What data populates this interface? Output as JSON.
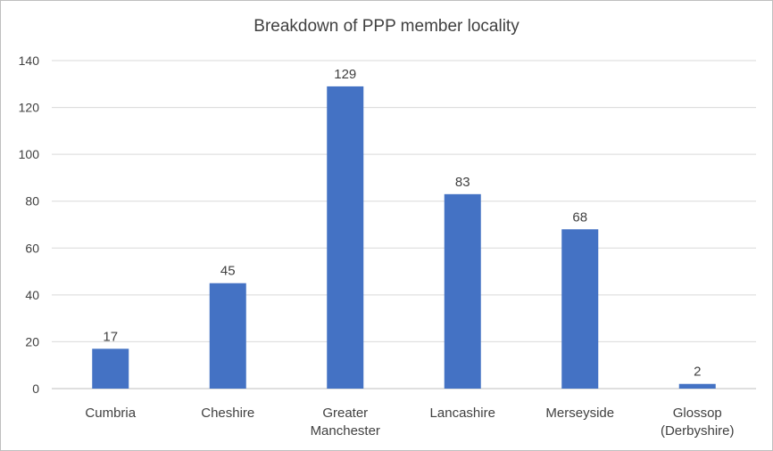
{
  "chart_data": {
    "type": "bar",
    "title": "Breakdown of PPP member locality",
    "categories": [
      "Cumbria",
      "Cheshire",
      "Greater Manchester",
      "Lancashire",
      "Merseyside",
      "Glossop (Derbyshire)"
    ],
    "category_lines": [
      [
        "Cumbria"
      ],
      [
        "Cheshire"
      ],
      [
        "Greater",
        "Manchester"
      ],
      [
        "Lancashire"
      ],
      [
        "Merseyside"
      ],
      [
        "Glossop",
        "(Derbyshire)"
      ]
    ],
    "values": [
      17,
      45,
      129,
      83,
      68,
      2
    ],
    "ylim": [
      0,
      140
    ],
    "yticks": [
      0,
      20,
      40,
      60,
      80,
      100,
      120,
      140
    ],
    "xlabel": "",
    "ylabel": "",
    "grid": true,
    "legend": "none",
    "bar_color": "#4472C4",
    "grid_color": "#d9d9d9"
  }
}
